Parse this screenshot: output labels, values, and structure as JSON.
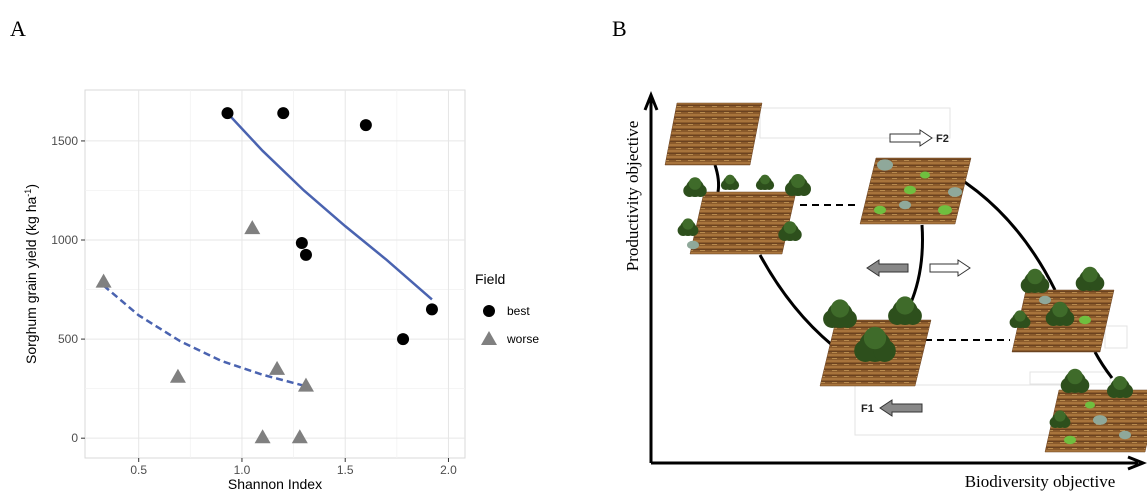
{
  "panel_labels": [
    "A",
    "B"
  ],
  "chart_data": {
    "type": "scatter",
    "xlabel": "Shannon Index",
    "ylabel": "Sorghum grain yield  (kg ha",
    "ylabel_sup": "-1",
    "ylabel_end": ")",
    "xlim": [
      0.24,
      2.08
    ],
    "ylim": [
      -100,
      1757
    ],
    "xticks": [
      0.5,
      {
        "value": 1,
        "label": "1.0"
      },
      1.5,
      {
        "value": 2,
        "label": "2.0"
      }
    ],
    "yticks": [
      0,
      500,
      1000,
      1500
    ],
    "minor_xticks": [
      0.75,
      1.25,
      1.75
    ],
    "minor_yticks": [
      250,
      750,
      1250
    ],
    "grid": true,
    "legend": "right",
    "legend_title": "Field",
    "series": [
      {
        "name": "best",
        "color": "#000000",
        "marker": "circle",
        "x": [
          0.93,
          1.2,
          1.6,
          1.29,
          1.31,
          1.78,
          1.92
        ],
        "values": [
          1640,
          1640,
          1580,
          985,
          925,
          500,
          650
        ],
        "fit": {
          "style": "solid",
          "color": "#4a63b0",
          "x": [
            0.93,
            1.1,
            1.3,
            1.5,
            1.7,
            1.92
          ],
          "values": [
            1640,
            1450,
            1250,
            1070,
            900,
            700
          ]
        }
      },
      {
        "name": "worse",
        "color": "#808080",
        "marker": "triangle",
        "x": [
          0.33,
          0.69,
          1.05,
          1.17,
          1.31,
          1.1,
          1.28
        ],
        "values": [
          790,
          310,
          1060,
          350,
          265,
          5,
          5
        ],
        "fit": {
          "style": "dashed",
          "color": "#4a63b0",
          "x": [
            0.33,
            0.5,
            0.7,
            0.9,
            1.1,
            1.3
          ],
          "values": [
            770,
            620,
            490,
            390,
            320,
            265
          ]
        }
      }
    ]
  },
  "diagram": {
    "y_axis_label": "Productivity objective",
    "x_axis_label": "Biodiversity objective",
    "arrow_labels": [
      "F2",
      "F1"
    ]
  }
}
